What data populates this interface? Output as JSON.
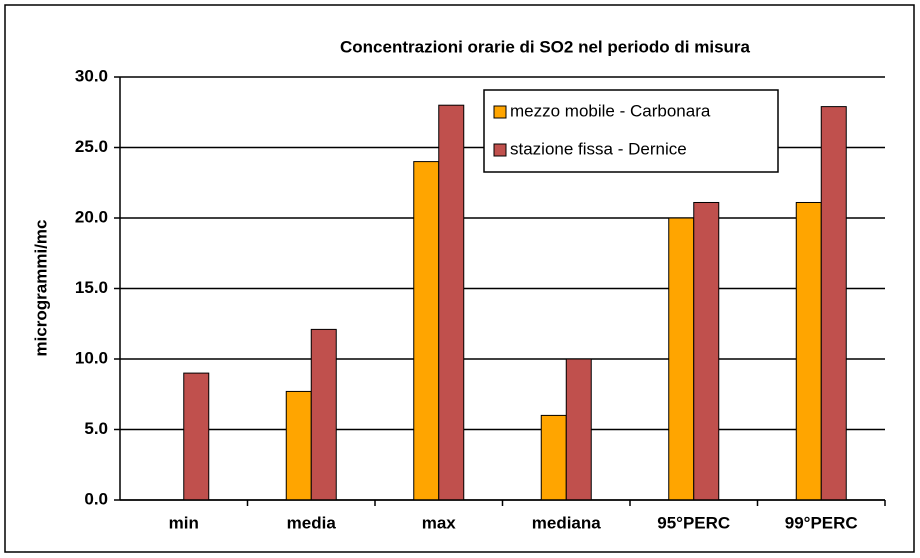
{
  "chart_data": {
    "type": "bar",
    "title": "Concentrazioni orarie di SO2 nel periodo  di misura",
    "y_label": "microgrammi/mc",
    "categories": [
      "min",
      "media",
      "max",
      "mediana",
      "95°PERC",
      "99°PERC"
    ],
    "series": [
      {
        "name": "mezzo mobile - Carbonara",
        "color": "#ffa500",
        "values": [
          0,
          7.7,
          24,
          6,
          20,
          21.1
        ]
      },
      {
        "name": "stazione fissa - Dernice",
        "color": "#c0504d",
        "values": [
          9,
          12.1,
          28,
          10,
          21.1,
          27.9
        ]
      }
    ],
    "ylim": [
      0,
      30
    ],
    "yticks": [
      {
        "value": 0,
        "label": "0.0"
      },
      {
        "value": 5,
        "label": "5.0"
      },
      {
        "value": 10,
        "label": "10.0"
      },
      {
        "value": 15,
        "label": "15.0"
      },
      {
        "value": 20,
        "label": "20.0"
      },
      {
        "value": 25,
        "label": "25.0"
      },
      {
        "value": 30,
        "label": "30.0"
      }
    ],
    "grid": true
  }
}
